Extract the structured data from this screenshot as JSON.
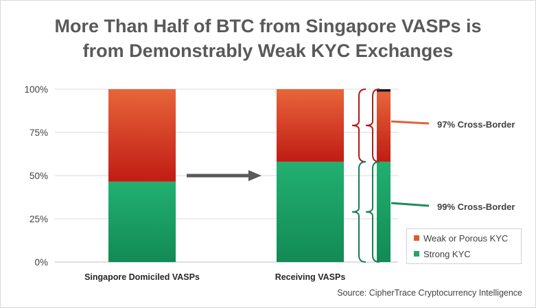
{
  "chart_data": {
    "type": "bar",
    "stacked": true,
    "title_lines": [
      "More Than Half of BTC from Singapore VASPs is",
      "from Demonstrably Weak KYC Exchanges"
    ],
    "categories": [
      "Singapore Domiciled VASPs",
      "Receiving VASPs"
    ],
    "series": [
      {
        "name": "Strong KYC",
        "values": [
          46.5,
          58
        ],
        "color": "#20a56a"
      },
      {
        "name": "Weak or Porous KYC",
        "values": [
          53.5,
          42
        ],
        "color": "#e05a30"
      }
    ],
    "y_ticks": [
      "0%",
      "25%",
      "50%",
      "75%",
      "100%"
    ],
    "ylim": [
      0,
      100
    ],
    "grid": true,
    "legend_position": "bottom-right",
    "cross_border_bar": {
      "segments": [
        {
          "name": "Strong KYC",
          "from": 0,
          "to": 58,
          "color": "#20a56a"
        },
        {
          "name": "Weak or Porous KYC",
          "from": 58,
          "to": 98.5,
          "color": "#e05a30"
        },
        {
          "name": "",
          "from": 98.5,
          "to": 100,
          "color": "#1a1a1a"
        }
      ]
    },
    "annotations": [
      {
        "text": "97% Cross-Border",
        "color": "#e0623a",
        "refers_to": "Weak or Porous KYC"
      },
      {
        "text": "99% Cross-Border",
        "color": "#1f8a5a",
        "refers_to": "Strong KYC"
      }
    ],
    "source": "Source: CipherTrace Cryptocurrency Intelligence"
  }
}
